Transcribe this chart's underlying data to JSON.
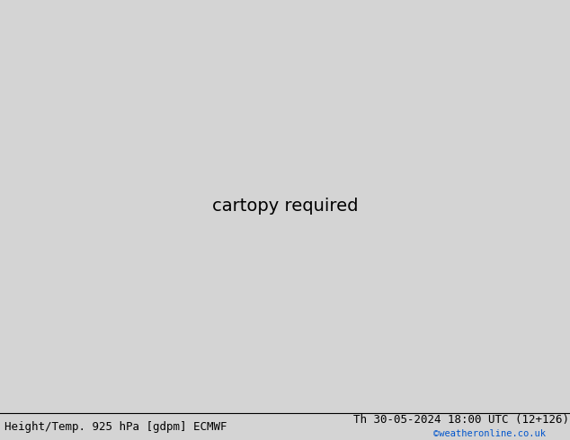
{
  "title_left": "Height/Temp. 925 hPa [gdpm] ECMWF",
  "title_right": "Th 30-05-2024 18:00 UTC (12+126)",
  "watermark": "©weatheronline.co.uk",
  "bg_color": "#d4d4d4",
  "ocean_color": "#d4d4d4",
  "land_green_color": "#c8f0a0",
  "land_gray_color": "#b8b8b8",
  "contour_black": "#000000",
  "contour_orange": "#ff8c00",
  "contour_red": "#e00000",
  "contour_magenta": "#ee00ee",
  "contour_ygreen": "#90d020",
  "contour_teal": "#00b0b0",
  "text_color": "#000000",
  "watermark_color": "#0055cc",
  "lon_min": 88,
  "lon_max": 175,
  "lat_min": -12,
  "lat_max": 55,
  "figw": 6.34,
  "figh": 4.9,
  "dpi": 100
}
